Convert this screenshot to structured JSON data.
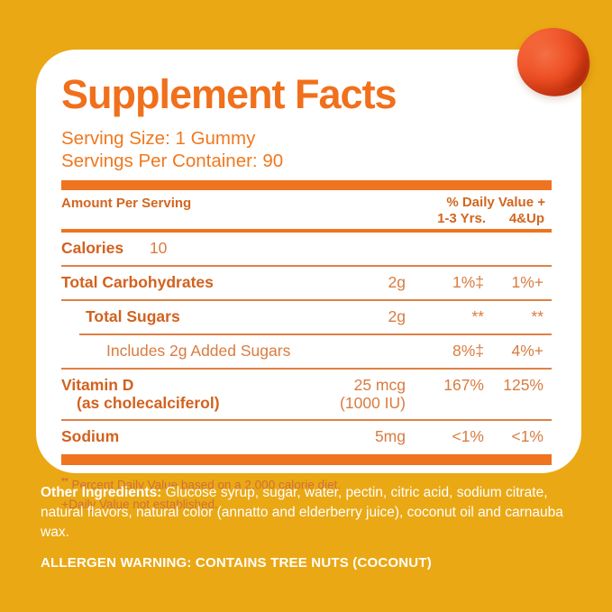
{
  "label": {
    "title": "Supplement Facts",
    "serving_size": "Serving Size: 1 Gummy",
    "servings_per_container": "Servings Per Container: 90",
    "columns": {
      "amount": "Amount Per Serving",
      "daily_value": "% Daily Value +",
      "age_1_3": "1-3 Yrs.",
      "age_4_up": "4&Up"
    },
    "rows": {
      "calories": {
        "label": "Calories",
        "value": "10"
      },
      "total_carbohydrates": {
        "label": "Total Carbohydrates",
        "amount": "2g",
        "dv_1_3": "1%‡",
        "dv_4up": "1%+"
      },
      "total_sugars": {
        "label": "Total Sugars",
        "amount": "2g",
        "dv_1_3": "**",
        "dv_4up": "**"
      },
      "added_sugars": {
        "label": "Includes 2g Added Sugars",
        "dv_1_3": "8%‡",
        "dv_4up": "4%+"
      },
      "vitamin_d": {
        "label": "Vitamin D",
        "label_note": "(as cholecalciferol)",
        "amount": "25 mcg",
        "amount_note": "(1000 IU)",
        "dv_1_3": "167%",
        "dv_4up": "125%"
      },
      "sodium": {
        "label": "Sodium",
        "amount": "5mg",
        "dv_1_3": "<1%",
        "dv_4up": "<1%"
      }
    },
    "footnotes": {
      "dv_symbol": "**",
      "dv_text": " Percent Daily Value based on a 2,000 calorie diet.",
      "ne_symbol": "+",
      "ne_text": "Daily Value not established."
    }
  },
  "ingredients": {
    "label": "Other Ingredients:",
    "text": " Glucose syrup, sugar, water, pectin, citric acid, sodium citrate, natural flavors, natural color (annatto and elderberry juice), coconut oil and carnauba wax."
  },
  "allergen": "ALLERGEN WARNING: CONTAINS TREE NUTS (COCONUT)",
  "colors": {
    "background": "#EAA814",
    "card": "#FFFFFF",
    "accent_orange": "#EE7420",
    "title_orange": "#F0701C",
    "row_label_orange": "#D2621F",
    "row_value_orange": "#D97C40",
    "rule_orange": "#E08144",
    "footnote_orange": "#D0703A",
    "gummy_red_orange": "#E64318",
    "bottom_text_white": "#FFFFFF"
  }
}
